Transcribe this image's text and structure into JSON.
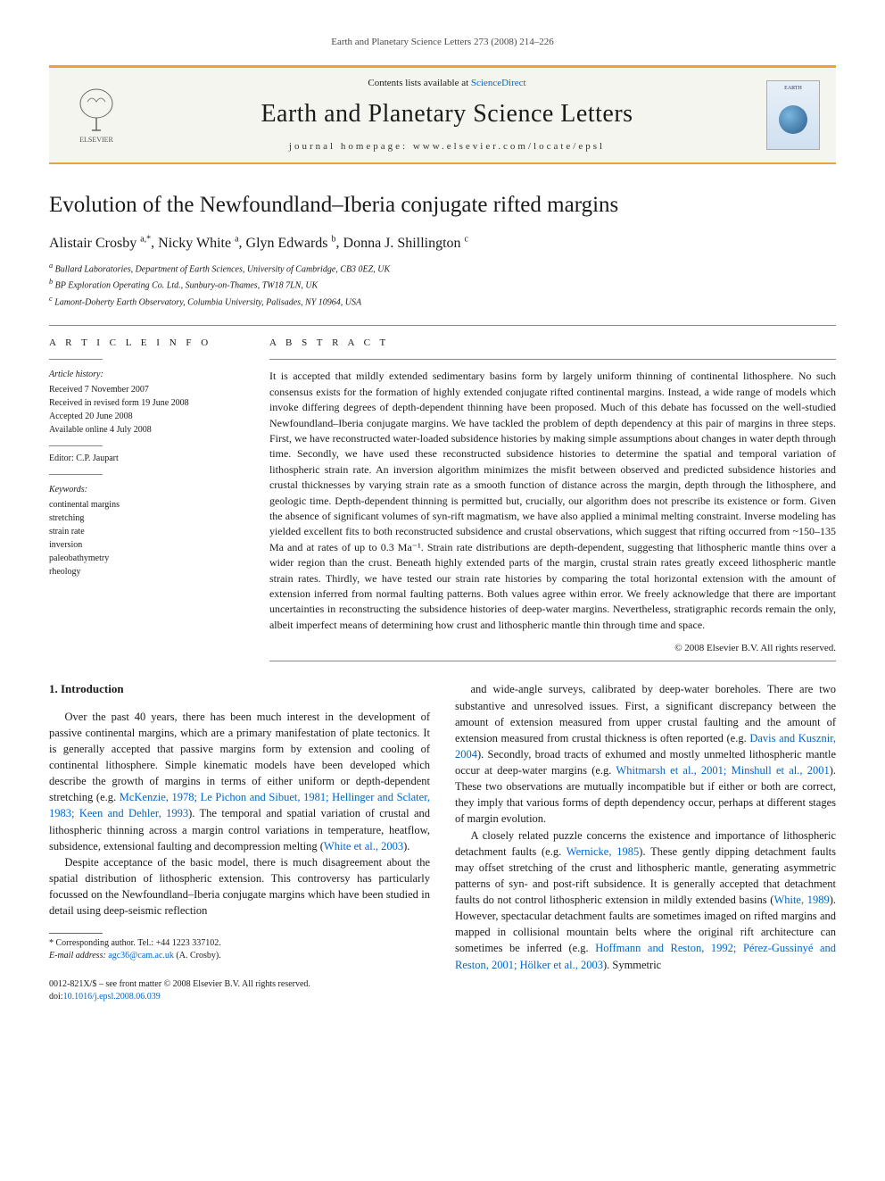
{
  "running_header": "Earth and Planetary Science Letters 273 (2008) 214–226",
  "banner": {
    "contents_prefix": "Contents lists available at ",
    "contents_link": "ScienceDirect",
    "journal_name": "Earth and Planetary Science Letters",
    "homepage": "journal homepage: www.elsevier.com/locate/epsl",
    "publisher": "ELSEVIER",
    "cover_label": "EARTH"
  },
  "title": "Evolution of the Newfoundland–Iberia conjugate rifted margins",
  "authors_html": "Alistair Crosby <sup>a,</sup>*, Nicky White <sup>a</sup>, Glyn Edwards <sup>b</sup>, Donna J. Shillington <sup>c</sup>",
  "authors": [
    {
      "name": "Alistair Crosby",
      "aff": "a,*"
    },
    {
      "name": "Nicky White",
      "aff": "a"
    },
    {
      "name": "Glyn Edwards",
      "aff": "b"
    },
    {
      "name": "Donna J. Shillington",
      "aff": "c"
    }
  ],
  "affiliations": [
    {
      "label": "a",
      "text": "Bullard Laboratories, Department of Earth Sciences, University of Cambridge, CB3 0EZ, UK"
    },
    {
      "label": "b",
      "text": "BP Exploration Operating Co. Ltd., Sunbury-on-Thames, TW18 7LN, UK"
    },
    {
      "label": "c",
      "text": "Lamont-Doherty Earth Observatory, Columbia University, Palisades, NY 10964, USA"
    }
  ],
  "article_info": {
    "heading": "A R T I C L E   I N F O",
    "history_label": "Article history:",
    "history": [
      "Received 7 November 2007",
      "Received in revised form 19 June 2008",
      "Accepted 20 June 2008",
      "Available online 4 July 2008"
    ],
    "editor_label": "Editor:",
    "editor": "C.P. Jaupart",
    "keywords_label": "Keywords:",
    "keywords": [
      "continental margins",
      "stretching",
      "strain rate",
      "inversion",
      "paleobathymetry",
      "rheology"
    ]
  },
  "abstract": {
    "heading": "A B S T R A C T",
    "body": "It is accepted that mildly extended sedimentary basins form by largely uniform thinning of continental lithosphere. No such consensus exists for the formation of highly extended conjugate rifted continental margins. Instead, a wide range of models which invoke differing degrees of depth-dependent thinning have been proposed. Much of this debate has focussed on the well-studied Newfoundland–Iberia conjugate margins. We have tackled the problem of depth dependency at this pair of margins in three steps. First, we have reconstructed water-loaded subsidence histories by making simple assumptions about changes in water depth through time. Secondly, we have used these reconstructed subsidence histories to determine the spatial and temporal variation of lithospheric strain rate. An inversion algorithm minimizes the misfit between observed and predicted subsidence histories and crustal thicknesses by varying strain rate as a smooth function of distance across the margin, depth through the lithosphere, and geologic time. Depth-dependent thinning is permitted but, crucially, our algorithm does not prescribe its existence or form. Given the absence of significant volumes of syn-rift magmatism, we have also applied a minimal melting constraint. Inverse modeling has yielded excellent fits to both reconstructed subsidence and crustal observations, which suggest that rifting occurred from ~150–135 Ma and at rates of up to 0.3 Ma⁻¹. Strain rate distributions are depth-dependent, suggesting that lithospheric mantle thins over a wider region than the crust. Beneath highly extended parts of the margin, crustal strain rates greatly exceed lithospheric mantle strain rates. Thirdly, we have tested our strain rate histories by comparing the total horizontal extension with the amount of extension inferred from normal faulting patterns. Both values agree within error. We freely acknowledge that there are important uncertainties in reconstructing the subsidence histories of deep-water margins. Nevertheless, stratigraphic records remain the only, albeit imperfect means of determining how crust and lithospheric mantle thin through time and space.",
    "copyright": "© 2008 Elsevier B.V. All rights reserved."
  },
  "section1": {
    "heading": "1. Introduction",
    "paras_left": [
      {
        "pre": "Over the past 40 years, there has been much interest in the development of passive continental margins, which are a primary manifestation of plate tectonics. It is generally accepted that passive margins form by extension and cooling of continental lithosphere. Simple kinematic models have been developed which describe the growth of margins in terms of either uniform or depth-dependent stretching (e.g. ",
        "cite": "McKenzie, 1978; Le Pichon and Sibuet, 1981; Hellinger and Sclater, 1983; Keen and Dehler, 1993",
        "post": "). The temporal and spatial variation of crustal and lithospheric thinning across a margin control variations in temperature, heatflow, subsidence, extensional faulting and decompression melting (",
        "cite2": "White et al., 2003",
        "post2": ")."
      },
      {
        "pre": "Despite acceptance of the basic model, there is much disagreement about the spatial distribution of lithospheric extension. This controversy has particularly focussed on the Newfoundland–Iberia conjugate margins which have been studied in detail using deep-seismic reflection",
        "cite": "",
        "post": ""
      }
    ],
    "paras_right": [
      {
        "pre": "and wide-angle surveys, calibrated by deep-water boreholes. There are two substantive and unresolved issues. First, a significant discrepancy between the amount of extension measured from upper crustal faulting and the amount of extension measured from crustal thickness is often reported (e.g. ",
        "cite": "Davis and Kusznir, 2004",
        "post": "). Secondly, broad tracts of exhumed and mostly unmelted lithospheric mantle occur at deep-water margins (e.g. ",
        "cite2": "Whitmarsh et al., 2001; Minshull et al., 2001",
        "post2": "). These two observations are mutually incompatible but if either or both are correct, they imply that various forms of depth dependency occur, perhaps at different stages of margin evolution."
      },
      {
        "pre": "A closely related puzzle concerns the existence and importance of lithospheric detachment faults (e.g. ",
        "cite": "Wernicke, 1985",
        "post": "). These gently dipping detachment faults may offset stretching of the crust and lithospheric mantle, generating asymmetric patterns of syn- and post-rift subsidence. It is generally accepted that detachment faults do not control lithospheric extension in mildly extended basins (",
        "cite2": "White, 1989",
        "post2": "). However, spectacular detachment faults are sometimes imaged on rifted margins and mapped in collisional mountain belts where the original rift architecture can sometimes be inferred (e.g. ",
        "cite3": "Hoffmann and Reston, 1992; Pérez-Gussinyé and Reston, 2001; Hölker et al., 2003",
        "post3": "). Symmetric"
      }
    ]
  },
  "footnote": {
    "corr": "* Corresponding author. Tel.: +44 1223 337102.",
    "email_label": "E-mail address: ",
    "email": "agc36@cam.ac.uk",
    "email_tail": " (A. Crosby)."
  },
  "footer": {
    "front_matter": "0012-821X/$ – see front matter © 2008 Elsevier B.V. All rights reserved.",
    "doi_label": "doi:",
    "doi": "10.1016/j.epsl.2008.06.039"
  },
  "colors": {
    "accent": "#e8a33d",
    "link": "#0066cc",
    "text": "#1a1a1a",
    "muted": "#4a4a4a"
  }
}
